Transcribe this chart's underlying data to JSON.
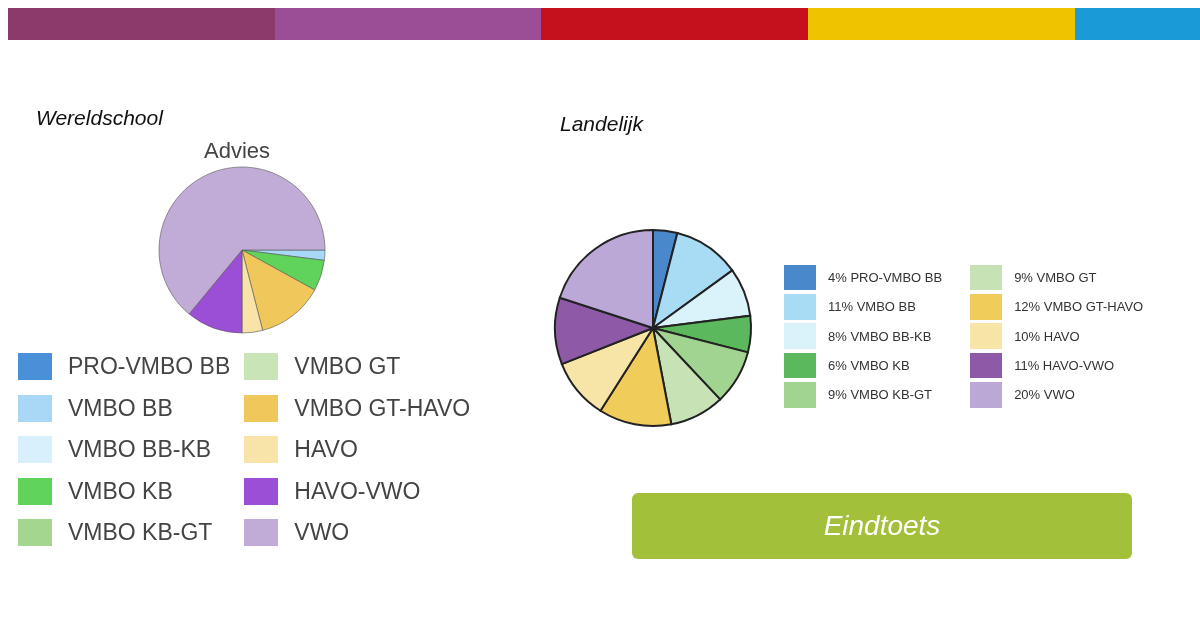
{
  "chart_data": [
    {
      "type": "pie",
      "title": "Wereldschool",
      "subtitle": "Advies",
      "categories": [
        "PRO-VMBO BB",
        "VMBO BB",
        "VMBO BB-KB",
        "VMBO KB",
        "VMBO KB-GT",
        "VMBO GT",
        "VMBO GT-HAVO",
        "HAVO",
        "HAVO-VWO",
        "VWO"
      ],
      "values": [
        0,
        2,
        0,
        6,
        0,
        0,
        13,
        4,
        11,
        64
      ],
      "colors": [
        "#4a90d9",
        "#a8d8f5",
        "#d8f0fb",
        "#5fd35a",
        "#a5d68f",
        "#c9e4b7",
        "#f0c75a",
        "#f8e3a8",
        "#9b4fd6",
        "#c0acd6"
      ],
      "legend": "bottom"
    },
    {
      "type": "pie",
      "title": "Landelijk",
      "categories": [
        "PRO-VMBO BB",
        "VMBO BB",
        "VMBO BB-KB",
        "VMBO KB",
        "VMBO KB-GT",
        "VMBO GT",
        "VMBO GT-HAVO",
        "HAVO",
        "HAVO-VWO",
        "VWO"
      ],
      "values": [
        4,
        11,
        8,
        6,
        9,
        9,
        12,
        10,
        11,
        20
      ],
      "value_labels": [
        "4%",
        "11%",
        "8%",
        "6%",
        "9%",
        "9%",
        "12%",
        "10%",
        "11%",
        "20%"
      ],
      "colors": [
        "#4a88cc",
        "#a8dcf5",
        "#daf3fb",
        "#5cb85c",
        "#a1d490",
        "#c7e3b5",
        "#f0cc5a",
        "#f7e5a8",
        "#8e5aa8",
        "#bba8d6"
      ],
      "legend": "right",
      "annotations": [
        "Eindtoets"
      ]
    }
  ]
}
